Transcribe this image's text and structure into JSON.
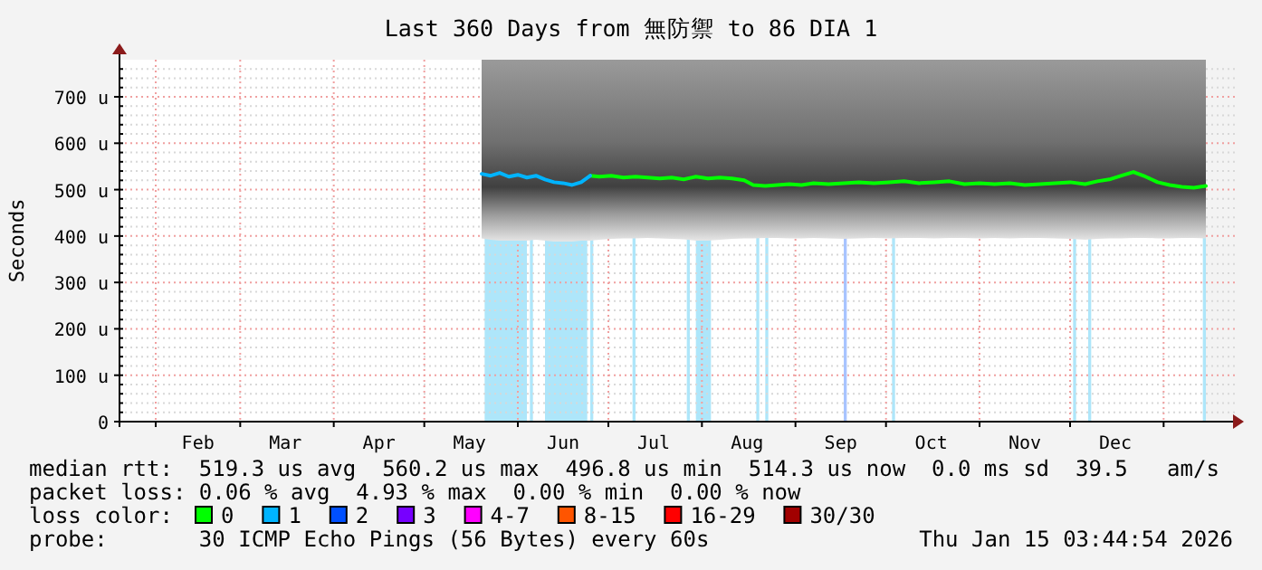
{
  "chart_data": {
    "type": "line",
    "title": "Last 360 Days from 無防禦 to 86 DIA 1",
    "ylabel": "Seconds",
    "legend_title": "loss color:",
    "legend": "bottom",
    "grid": true,
    "xlim": [
      "2025-01-20",
      "2026-01-15"
    ],
    "xticks": [
      {
        "value": "2025-02-01",
        "label": null
      },
      {
        "value": "2025-02-15",
        "label": "Feb"
      },
      {
        "value": "2025-03-01",
        "label": null
      },
      {
        "value": "2025-03-16",
        "label": "Mar"
      },
      {
        "value": "2025-04-01",
        "label": null
      },
      {
        "value": "2025-04-16",
        "label": "Apr"
      },
      {
        "value": "2025-05-01",
        "label": null
      },
      {
        "value": "2025-05-16",
        "label": "May"
      },
      {
        "value": "2025-06-01",
        "label": null
      },
      {
        "value": "2025-06-16",
        "label": "Jun"
      },
      {
        "value": "2025-07-01",
        "label": null
      },
      {
        "value": "2025-07-16",
        "label": "Jul"
      },
      {
        "value": "2025-08-01",
        "label": null
      },
      {
        "value": "2025-08-16",
        "label": "Aug"
      },
      {
        "value": "2025-09-01",
        "label": null
      },
      {
        "value": "2025-09-16",
        "label": "Sep"
      },
      {
        "value": "2025-10-01",
        "label": null
      },
      {
        "value": "2025-10-16",
        "label": "Oct"
      },
      {
        "value": "2025-11-01",
        "label": null
      },
      {
        "value": "2025-11-16",
        "label": "Nov"
      },
      {
        "value": "2025-12-01",
        "label": null
      },
      {
        "value": "2025-12-16",
        "label": "Dec"
      },
      {
        "value": "2026-01-01",
        "label": null
      }
    ],
    "ylim": [
      0,
      780
    ],
    "yticks": [
      0,
      {
        "value": 20,
        "label": null
      },
      {
        "value": 40,
        "label": null
      },
      {
        "value": 60,
        "label": null
      },
      {
        "value": 80,
        "label": null
      },
      {
        "value": 100,
        "label": "100 u"
      },
      {
        "value": 120,
        "label": null
      },
      {
        "value": 140,
        "label": null
      },
      {
        "value": 160,
        "label": null
      },
      {
        "value": 180,
        "label": null
      },
      {
        "value": 200,
        "label": "200 u"
      },
      {
        "value": 220,
        "label": null
      },
      {
        "value": 240,
        "label": null
      },
      {
        "value": 260,
        "label": null
      },
      {
        "value": 280,
        "label": null
      },
      {
        "value": 300,
        "label": "300 u"
      },
      {
        "value": 320,
        "label": null
      },
      {
        "value": 340,
        "label": null
      },
      {
        "value": 360,
        "label": null
      },
      {
        "value": 380,
        "label": null
      },
      {
        "value": 400,
        "label": "400 u"
      },
      {
        "value": 420,
        "label": null
      },
      {
        "value": 440,
        "label": null
      },
      {
        "value": 460,
        "label": null
      },
      {
        "value": 480,
        "label": null
      },
      {
        "value": 500,
        "label": "500 u"
      },
      {
        "value": 520,
        "label": null
      },
      {
        "value": 540,
        "label": null
      },
      {
        "value": 560,
        "label": null
      },
      {
        "value": 580,
        "label": null
      },
      {
        "value": 600,
        "label": "600 u"
      },
      {
        "value": 620,
        "label": null
      },
      {
        "value": 640,
        "label": null
      },
      {
        "value": 660,
        "label": null
      },
      {
        "value": 680,
        "label": null
      },
      {
        "value": 700,
        "label": "700 u"
      },
      {
        "value": 720,
        "label": null
      },
      {
        "value": 740,
        "label": null
      },
      {
        "value": 760,
        "label": null
      }
    ],
    "series": [
      {
        "name": "0",
        "color": "#00ff00",
        "x": [
          "2025-06-25",
          "2025-06-28",
          "2025-07-02",
          "2025-07-06",
          "2025-07-10",
          "2025-07-14",
          "2025-07-18",
          "2025-07-22",
          "2025-07-26",
          "2025-07-30",
          "2025-08-03",
          "2025-08-07",
          "2025-08-11",
          "2025-08-15",
          "2025-08-18",
          "2025-08-22",
          "2025-08-26",
          "2025-08-30",
          "2025-09-03",
          "2025-09-07",
          "2025-09-12",
          "2025-09-17",
          "2025-09-22",
          "2025-09-27",
          "2025-10-02",
          "2025-10-07",
          "2025-10-12",
          "2025-10-17",
          "2025-10-22",
          "2025-10-27",
          "2025-11-01",
          "2025-11-06",
          "2025-11-11",
          "2025-11-16",
          "2025-11-21",
          "2025-11-26",
          "2025-12-01",
          "2025-12-06",
          "2025-12-10",
          "2025-12-14",
          "2025-12-18",
          "2025-12-22",
          "2025-12-26",
          "2025-12-30",
          "2026-01-03",
          "2026-01-07",
          "2026-01-11",
          "2026-01-15"
        ],
        "values": [
          530,
          528,
          530,
          526,
          528,
          526,
          524,
          526,
          522,
          528,
          524,
          526,
          524,
          520,
          510,
          508,
          510,
          512,
          510,
          514,
          512,
          514,
          516,
          514,
          516,
          518,
          514,
          516,
          518,
          512,
          514,
          512,
          514,
          510,
          512,
          514,
          516,
          512,
          518,
          522,
          530,
          538,
          528,
          516,
          510,
          506,
          504,
          508
        ],
        "lower": [
          390,
          392,
          394,
          395,
          395,
          396,
          395,
          394,
          393,
          390,
          390,
          392,
          394,
          395,
          395,
          396,
          396,
          395,
          395,
          396,
          395,
          394,
          395,
          396,
          395,
          396,
          396,
          395,
          396,
          396,
          395,
          396,
          395,
          396,
          396,
          395,
          394,
          392,
          394,
          395,
          395,
          396,
          396,
          395,
          395,
          396,
          396,
          395
        ],
        "upper": [
          780,
          780,
          780,
          780,
          780,
          780,
          780,
          780,
          780,
          780,
          780,
          780,
          780,
          780,
          780,
          780,
          780,
          780,
          780,
          780,
          780,
          780,
          780,
          780,
          780,
          780,
          780,
          780,
          780,
          780,
          780,
          780,
          780,
          780,
          780,
          780,
          780,
          780,
          780,
          780,
          780,
          780,
          780,
          780,
          780,
          780,
          780,
          780
        ]
      },
      {
        "name": "1",
        "color": "#00b4ff",
        "x": [
          "2025-05-20",
          "2025-05-23",
          "2025-05-26",
          "2025-05-29",
          "2025-06-01",
          "2025-06-04",
          "2025-06-07",
          "2025-06-10",
          "2025-06-13",
          "2025-06-16",
          "2025-06-19",
          "2025-06-22",
          "2025-06-25"
        ],
        "values": [
          534,
          530,
          536,
          528,
          532,
          526,
          530,
          522,
          516,
          514,
          510,
          516,
          530
        ],
        "lower": [
          395,
          392,
          390,
          390,
          390,
          390,
          392,
          390,
          388,
          388,
          388,
          390,
          390
        ],
        "upper": [
          780,
          780,
          780,
          780,
          780,
          780,
          780,
          780,
          780,
          780,
          780,
          780,
          780
        ]
      },
      {
        "name": "2",
        "color": "#0050ff"
      },
      {
        "name": "3",
        "color": "#7700ff"
      },
      {
        "name": "4-7",
        "color": "#ff00ff"
      },
      {
        "name": "8-15",
        "color": "#ff5500"
      },
      {
        "name": "16-29",
        "color": "#ff0000"
      },
      {
        "name": "30/30",
        "color": "#a10000"
      }
    ],
    "bands": [
      {
        "axis": "x",
        "from": "2025-05-21",
        "to": "2025-06-04",
        "color": "#aee6fa"
      },
      {
        "axis": "x",
        "from": "2025-06-05",
        "to": "2025-06-06",
        "color": "#aee6fa"
      },
      {
        "axis": "x",
        "from": "2025-06-10",
        "to": "2025-06-24",
        "color": "#aee6fa"
      },
      {
        "axis": "x",
        "from": "2025-06-25",
        "to": "2025-06-26",
        "color": "#aee6fa"
      },
      {
        "axis": "x",
        "from": "2025-07-09",
        "to": "2025-07-10",
        "color": "#aee6fa"
      },
      {
        "axis": "x",
        "from": "2025-07-27",
        "to": "2025-07-28",
        "color": "#aee6fa"
      },
      {
        "axis": "x",
        "from": "2025-07-30",
        "to": "2025-08-04",
        "color": "#aee6fa"
      },
      {
        "axis": "x",
        "from": "2025-08-19",
        "to": "2025-08-20",
        "color": "#aee6fa"
      },
      {
        "axis": "x",
        "from": "2025-08-22",
        "to": "2025-08-23",
        "color": "#aee6fa"
      },
      {
        "axis": "x",
        "from": "2025-09-17",
        "to": "2025-09-18",
        "color": "#a8c4ff"
      },
      {
        "axis": "x",
        "from": "2025-10-03",
        "to": "2025-10-04",
        "color": "#aee6fa"
      },
      {
        "axis": "x",
        "from": "2025-12-02",
        "to": "2025-12-03",
        "color": "#aee6fa"
      },
      {
        "axis": "x",
        "from": "2025-12-07",
        "to": "2025-12-08",
        "color": "#aee6fa"
      },
      {
        "axis": "x",
        "from": "2026-01-14",
        "to": "2026-01-15",
        "color": "#aee6fa"
      }
    ],
    "annotations": [
      "median rtt:  519.3 us avg  560.2 us max  496.8 us min  514.3 us now  0.0 ms sd  39.5   am/s",
      "packet loss: 0.06 % avg  4.93 % max  0.00 % min  0.00 % now",
      "probe:       30 ICMP Echo Pings (56 Bytes) every 60s",
      "Thu Jan 15 03:44:54 2026"
    ]
  }
}
